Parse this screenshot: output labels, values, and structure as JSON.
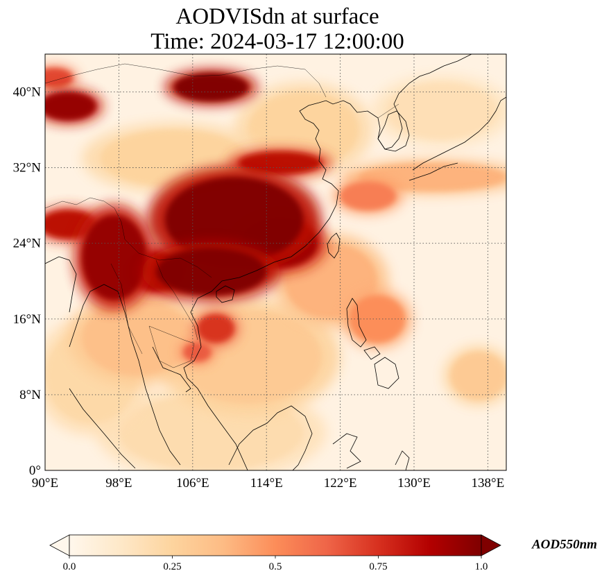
{
  "title": {
    "line1": "AODVISdn at surface",
    "line2": "Time: 2024-03-17 12:00:00"
  },
  "map": {
    "projection": "PlateCarree",
    "extent": {
      "lon": [
        90,
        140
      ],
      "lat": [
        0,
        44
      ]
    },
    "gridlines": "dotted",
    "coastlines": true,
    "borders": true,
    "lon_ticks": [
      {
        "value": 90,
        "label": "90°E"
      },
      {
        "value": 98,
        "label": "98°E"
      },
      {
        "value": 106,
        "label": "106°E"
      },
      {
        "value": 114,
        "label": "114°E"
      },
      {
        "value": 122,
        "label": "122°E"
      },
      {
        "value": 130,
        "label": "130°E"
      },
      {
        "value": 138,
        "label": "138°E"
      }
    ],
    "lat_ticks": [
      {
        "value": 0,
        "label": "0°"
      },
      {
        "value": 8,
        "label": "8°N"
      },
      {
        "value": 16,
        "label": "16°N"
      },
      {
        "value": 24,
        "label": "24°N"
      },
      {
        "value": 32,
        "label": "32°N"
      },
      {
        "value": 40,
        "label": "40°N"
      }
    ]
  },
  "colorbar": {
    "label": "AOD550nm",
    "colormap": "OrRd",
    "range": [
      0.0,
      1.0
    ],
    "extend": "both",
    "orientation": "horizontal",
    "ticks": [
      {
        "value": 0.0,
        "label": "0.0"
      },
      {
        "value": 0.25,
        "label": "0.25"
      },
      {
        "value": 0.5,
        "label": "0.5"
      },
      {
        "value": 0.75,
        "label": "0.75"
      },
      {
        "value": 1.0,
        "label": "1.0"
      }
    ],
    "colors": [
      "#fff7ec",
      "#fee8c8",
      "#fdd49e",
      "#fdbb84",
      "#fc8d59",
      "#ef6548",
      "#d7301f",
      "#b30000",
      "#7f0000"
    ]
  },
  "aod_regions": [
    {
      "lon": 110.5,
      "lat": 26.5,
      "r_lon": 7.5,
      "r_lat": 4.5,
      "aod": 1.0
    },
    {
      "lon": 108.0,
      "lat": 21.0,
      "r_lon": 6.0,
      "r_lat": 2.5,
      "aod": 1.0
    },
    {
      "lon": 115.5,
      "lat": 24.0,
      "r_lon": 4.0,
      "r_lat": 2.5,
      "aod": 0.95
    },
    {
      "lon": 97.5,
      "lat": 22.5,
      "r_lon": 3.5,
      "r_lat": 4.5,
      "aod": 0.95
    },
    {
      "lon": 102.0,
      "lat": 21.0,
      "r_lon": 3.0,
      "r_lat": 2.0,
      "aod": 0.9
    },
    {
      "lon": 92.5,
      "lat": 26.0,
      "r_lon": 3.0,
      "r_lat": 1.5,
      "aod": 0.85
    },
    {
      "lon": 108.0,
      "lat": 40.5,
      "r_lon": 4.0,
      "r_lat": 1.5,
      "aod": 1.0
    },
    {
      "lon": 92.5,
      "lat": 38.5,
      "r_lon": 3.0,
      "r_lat": 1.5,
      "aod": 0.95
    },
    {
      "lon": 91.0,
      "lat": 41.5,
      "r_lon": 2.0,
      "r_lat": 1.0,
      "aod": 0.7
    },
    {
      "lon": 115.5,
      "lat": 32.5,
      "r_lon": 4.5,
      "r_lat": 1.2,
      "aod": 0.85
    },
    {
      "lon": 108.5,
      "lat": 15.0,
      "r_lon": 2.0,
      "r_lat": 1.5,
      "aod": 0.75
    },
    {
      "lon": 106.5,
      "lat": 12.5,
      "r_lon": 1.5,
      "r_lat": 1.0,
      "aod": 0.65
    },
    {
      "lon": 125.0,
      "lat": 29.0,
      "r_lon": 3.0,
      "r_lat": 1.5,
      "aod": 0.55
    },
    {
      "lon": 132.0,
      "lat": 31.0,
      "r_lon": 8.0,
      "r_lat": 1.5,
      "aod": 0.4
    },
    {
      "lon": 126.0,
      "lat": 16.0,
      "r_lon": 3.0,
      "r_lat": 2.5,
      "aod": 0.5
    },
    {
      "lon": 100.0,
      "lat": 14.0,
      "r_lon": 6.0,
      "r_lat": 4.0,
      "aod": 0.35
    },
    {
      "lon": 112.0,
      "lat": 12.0,
      "r_lon": 8.0,
      "r_lat": 5.0,
      "aod": 0.3
    },
    {
      "lon": 121.0,
      "lat": 20.0,
      "r_lon": 5.0,
      "r_lat": 4.0,
      "aod": 0.4
    },
    {
      "lon": 118.0,
      "lat": 36.0,
      "r_lon": 6.0,
      "r_lat": 4.0,
      "aod": 0.25
    },
    {
      "lon": 104.0,
      "lat": 33.0,
      "r_lon": 8.0,
      "r_lat": 3.0,
      "aod": 0.25
    },
    {
      "lon": 95.0,
      "lat": 10.0,
      "r_lon": 5.0,
      "r_lat": 5.0,
      "aod": 0.22
    },
    {
      "lon": 108.0,
      "lat": 4.0,
      "r_lon": 10.0,
      "r_lat": 4.0,
      "aod": 0.2
    },
    {
      "lon": 133.0,
      "lat": 38.0,
      "r_lon": 6.0,
      "r_lat": 3.0,
      "aod": 0.18
    },
    {
      "lon": 137.0,
      "lat": 10.0,
      "r_lon": 3.0,
      "r_lat": 2.5,
      "aod": 0.3
    }
  ]
}
